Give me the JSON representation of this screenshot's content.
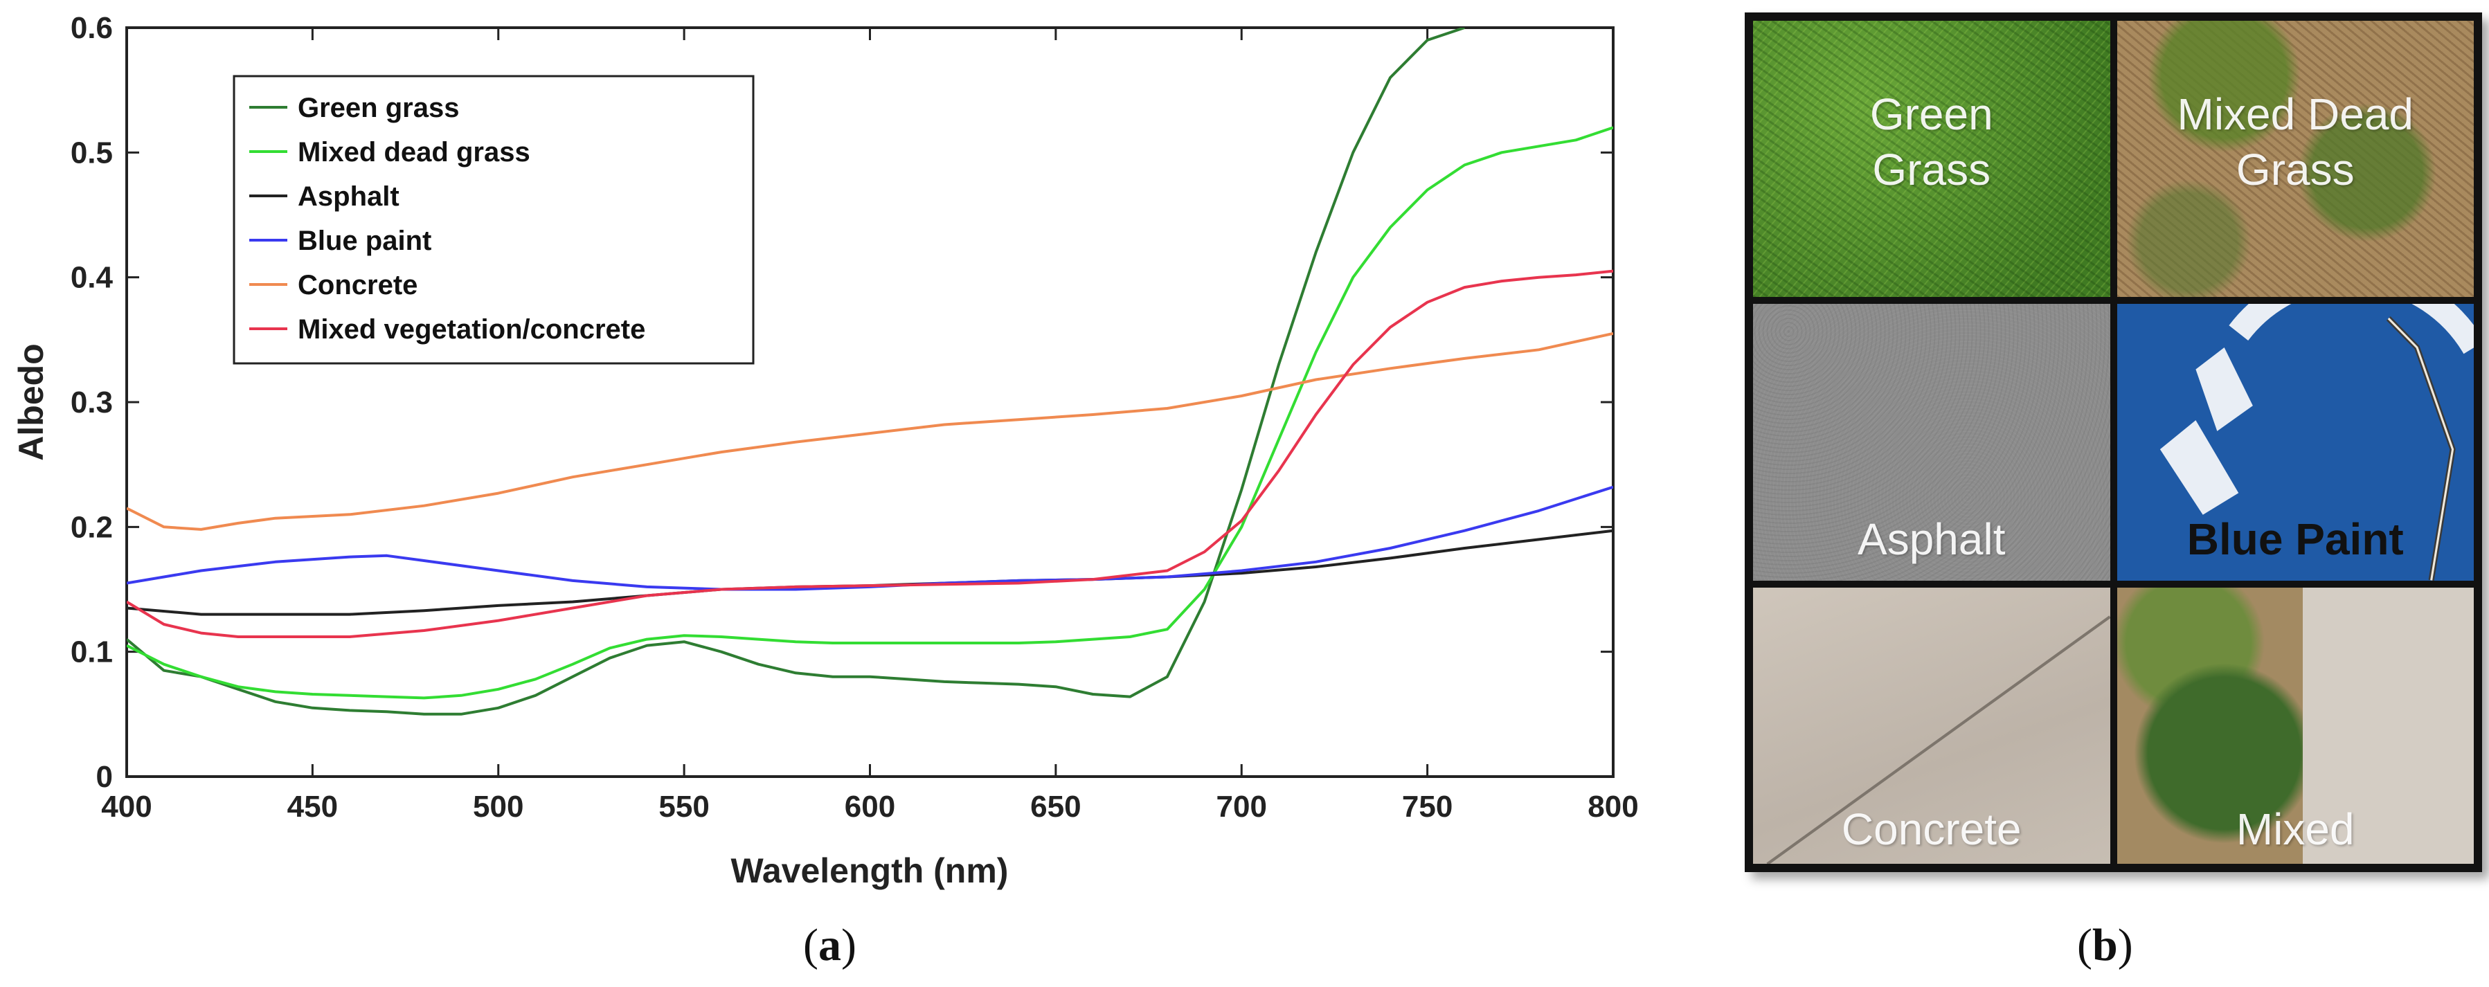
{
  "chart_data": {
    "type": "line",
    "xlabel": "Wavelength (nm)",
    "ylabel": "Albedo",
    "xlim": [
      400,
      800
    ],
    "ylim": [
      0,
      0.6
    ],
    "x_ticks": [
      "400",
      "450",
      "500",
      "550",
      "600",
      "650",
      "700",
      "750",
      "800"
    ],
    "y_ticks": [
      "0",
      "0.1",
      "0.2",
      "0.3",
      "0.4",
      "0.5",
      "0.6"
    ],
    "grid": false,
    "legend_position": "top-left",
    "series": [
      {
        "name": "Green grass",
        "color": "#2e7d32",
        "x": [
          400,
          410,
          420,
          430,
          440,
          450,
          460,
          470,
          480,
          490,
          500,
          510,
          520,
          530,
          540,
          550,
          560,
          570,
          580,
          590,
          600,
          610,
          620,
          630,
          640,
          650,
          660,
          670,
          680,
          690,
          700,
          710,
          720,
          730,
          740,
          750,
          760
        ],
        "y": [
          0.11,
          0.085,
          0.08,
          0.07,
          0.06,
          0.055,
          0.053,
          0.052,
          0.05,
          0.05,
          0.055,
          0.065,
          0.08,
          0.095,
          0.105,
          0.108,
          0.1,
          0.09,
          0.083,
          0.08,
          0.08,
          0.078,
          0.076,
          0.075,
          0.074,
          0.072,
          0.066,
          0.064,
          0.08,
          0.14,
          0.23,
          0.33,
          0.42,
          0.5,
          0.56,
          0.59,
          0.6
        ]
      },
      {
        "name": "Mixed dead grass",
        "color": "#33dd33",
        "x": [
          400,
          410,
          420,
          430,
          440,
          450,
          460,
          470,
          480,
          490,
          500,
          510,
          520,
          530,
          540,
          550,
          560,
          570,
          580,
          590,
          600,
          610,
          620,
          630,
          640,
          650,
          660,
          670,
          680,
          690,
          700,
          710,
          720,
          730,
          740,
          750,
          760,
          770,
          780,
          790,
          800
        ],
        "y": [
          0.105,
          0.09,
          0.08,
          0.072,
          0.068,
          0.066,
          0.065,
          0.064,
          0.063,
          0.065,
          0.07,
          0.078,
          0.09,
          0.103,
          0.11,
          0.113,
          0.112,
          0.11,
          0.108,
          0.107,
          0.107,
          0.107,
          0.107,
          0.107,
          0.107,
          0.108,
          0.11,
          0.112,
          0.118,
          0.15,
          0.2,
          0.27,
          0.34,
          0.4,
          0.44,
          0.47,
          0.49,
          0.5,
          0.505,
          0.51,
          0.52
        ]
      },
      {
        "name": "Asphalt",
        "color": "#222222",
        "x": [
          400,
          420,
          440,
          460,
          480,
          500,
          520,
          540,
          560,
          580,
          600,
          620,
          640,
          660,
          680,
          700,
          720,
          740,
          760,
          780,
          800
        ],
        "y": [
          0.135,
          0.13,
          0.13,
          0.13,
          0.133,
          0.137,
          0.14,
          0.145,
          0.15,
          0.152,
          0.153,
          0.155,
          0.157,
          0.158,
          0.16,
          0.163,
          0.168,
          0.175,
          0.183,
          0.19,
          0.197
        ]
      },
      {
        "name": "Blue paint",
        "color": "#3a3af0",
        "x": [
          400,
          420,
          440,
          460,
          470,
          480,
          500,
          520,
          540,
          560,
          580,
          600,
          620,
          640,
          660,
          680,
          700,
          720,
          740,
          760,
          780,
          800
        ],
        "y": [
          0.155,
          0.165,
          0.172,
          0.176,
          0.177,
          0.173,
          0.165,
          0.157,
          0.152,
          0.15,
          0.15,
          0.152,
          0.155,
          0.157,
          0.158,
          0.16,
          0.165,
          0.172,
          0.183,
          0.197,
          0.213,
          0.232
        ]
      },
      {
        "name": "Concrete",
        "color": "#f08a50",
        "x": [
          400,
          410,
          420,
          430,
          440,
          460,
          480,
          500,
          520,
          540,
          560,
          580,
          600,
          620,
          640,
          660,
          680,
          700,
          720,
          740,
          760,
          780,
          800
        ],
        "y": [
          0.215,
          0.2,
          0.198,
          0.203,
          0.207,
          0.21,
          0.217,
          0.227,
          0.24,
          0.25,
          0.26,
          0.268,
          0.275,
          0.282,
          0.286,
          0.29,
          0.295,
          0.305,
          0.318,
          0.327,
          0.335,
          0.342,
          0.355
        ]
      },
      {
        "name": "Mixed vegetation/concrete",
        "color": "#e8344e",
        "x": [
          400,
          410,
          420,
          430,
          440,
          460,
          480,
          500,
          520,
          540,
          560,
          580,
          600,
          620,
          640,
          660,
          680,
          690,
          700,
          710,
          720,
          730,
          740,
          750,
          760,
          770,
          780,
          790,
          800
        ],
        "y": [
          0.14,
          0.122,
          0.115,
          0.112,
          0.112,
          0.112,
          0.117,
          0.125,
          0.135,
          0.145,
          0.15,
          0.152,
          0.153,
          0.154,
          0.155,
          0.158,
          0.165,
          0.18,
          0.205,
          0.245,
          0.29,
          0.33,
          0.36,
          0.38,
          0.392,
          0.397,
          0.4,
          0.402,
          0.405
        ]
      }
    ]
  },
  "captions": {
    "a": "a",
    "b": "b"
  },
  "photo_tiles": [
    {
      "label": "Green Grass",
      "label_color": "rgba(255,255,255,0.92)"
    },
    {
      "label": "Mixed Dead Grass",
      "label_color": "rgba(255,255,255,0.92)"
    },
    {
      "label": "Asphalt",
      "label_color": "rgba(255,255,255,0.92)"
    },
    {
      "label": "Blue Paint",
      "label_color": "#111111"
    },
    {
      "label": "Concrete",
      "label_color": "rgba(255,255,255,0.92)"
    },
    {
      "label": "Mixed",
      "label_color": "rgba(255,255,255,0.92)"
    }
  ]
}
